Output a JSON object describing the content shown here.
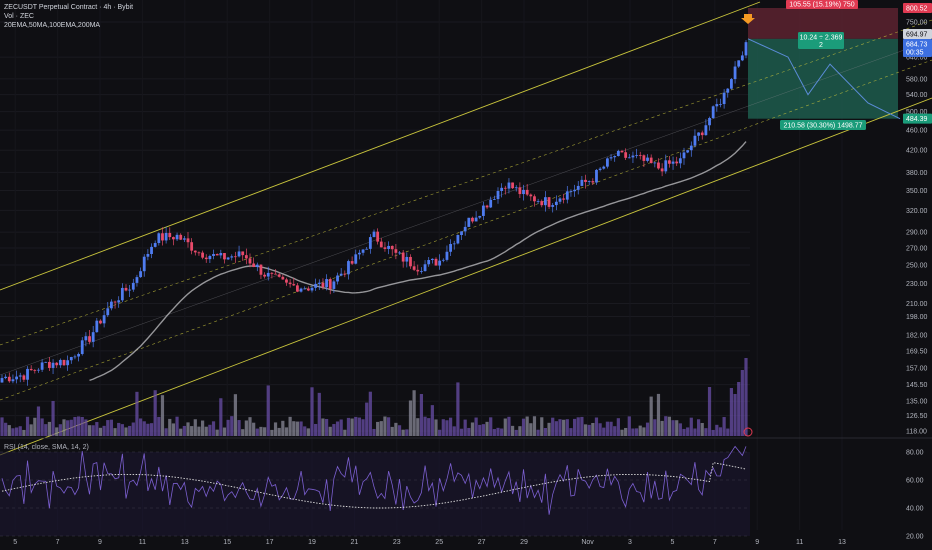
{
  "header": {
    "symbol_line": "ZECUSDT Perpetual Contract · 4h · Bybit",
    "vol_line": "Vol · ZEC",
    "ma_line": "20EMA,50MA,100EMA,200MA"
  },
  "rsi": {
    "title": "RSI (14, close, SMA, 14, 2)",
    "ticks": [
      "80.00",
      "60.00",
      "40.00",
      "20.00"
    ]
  },
  "colors": {
    "background": "#0f0f13",
    "bull": "#4f7cf0",
    "bear": "#e84a6a",
    "channel": "#c8c43c",
    "ma": "#b8b8bc",
    "volume": "#6a4fa8",
    "rsi_line": "#7b5fd0",
    "rsi_signal": "#e0e0e0",
    "target_zone": "#1d5c4e",
    "stop_zone": "#5c2230",
    "projection": "#5b8cd8"
  },
  "axis": {
    "price_ticks": [
      "750.00",
      "640.00",
      "580.00",
      "540.00",
      "500.00",
      "460.00",
      "420.00",
      "380.00",
      "350.00",
      "320.00",
      "290.00",
      "270.00",
      "250.00",
      "230.00",
      "210.00",
      "198.00",
      "182.00",
      "169.50",
      "157.00",
      "145.50",
      "135.00",
      "126.50",
      "118.00"
    ],
    "date_ticks": [
      "5",
      "7",
      "9",
      "11",
      "13",
      "15",
      "17",
      "19",
      "21",
      "23",
      "25",
      "27",
      "29",
      "Nov",
      "3",
      "5",
      "7",
      "9",
      "11",
      "13"
    ]
  },
  "price_labels": {
    "stop_level": "800.52",
    "current_price": "694.97",
    "last_price": "684.73",
    "countdown": "00:35",
    "target_level": "484.39"
  },
  "position": {
    "risk_label": "105.55 (15.19%) 750",
    "ratio_label": "10.24 ÷ 2.369",
    "ratio_sub": "2",
    "reward_label": "210.58 (30.30%) 1498.77"
  },
  "chart_data": {
    "type": "candlestick",
    "title": "ZECUSDT Perpetual Contract · 4h · Bybit",
    "y_scale": "log",
    "ylim": [
      118,
      800
    ],
    "x_range": [
      "Oct 4",
      "Nov 13"
    ],
    "candles_daily_close": [
      {
        "date": "Oct 4",
        "close": 150
      },
      {
        "date": "Oct 5",
        "close": 152
      },
      {
        "date": "Oct 6",
        "close": 160
      },
      {
        "date": "Oct 7",
        "close": 162
      },
      {
        "date": "Oct 8",
        "close": 180
      },
      {
        "date": "Oct 9",
        "close": 210
      },
      {
        "date": "Oct 10",
        "close": 230
      },
      {
        "date": "Oct 11",
        "close": 282
      },
      {
        "date": "Oct 12",
        "close": 285
      },
      {
        "date": "Oct 13",
        "close": 265
      },
      {
        "date": "Oct 14",
        "close": 258
      },
      {
        "date": "Oct 15",
        "close": 262
      },
      {
        "date": "Oct 16",
        "close": 240
      },
      {
        "date": "Oct 17",
        "close": 228
      },
      {
        "date": "Oct 18",
        "close": 226
      },
      {
        "date": "Oct 19",
        "close": 230
      },
      {
        "date": "Oct 20",
        "close": 252
      },
      {
        "date": "Oct 21",
        "close": 285
      },
      {
        "date": "Oct 22",
        "close": 262
      },
      {
        "date": "Oct 23",
        "close": 248
      },
      {
        "date": "Oct 24",
        "close": 255
      },
      {
        "date": "Oct 25",
        "close": 295
      },
      {
        "date": "Oct 26",
        "close": 325
      },
      {
        "date": "Oct 27",
        "close": 362
      },
      {
        "date": "Oct 28",
        "close": 340
      },
      {
        "date": "Oct 29",
        "close": 332
      },
      {
        "date": "Oct 30",
        "close": 350
      },
      {
        "date": "Oct 31",
        "close": 370
      },
      {
        "date": "Nov 1",
        "close": 410
      },
      {
        "date": "Nov 2",
        "close": 405
      },
      {
        "date": "Nov 3",
        "close": 388
      },
      {
        "date": "Nov 4",
        "close": 400
      },
      {
        "date": "Nov 5",
        "close": 460
      },
      {
        "date": "Nov 6",
        "close": 540
      },
      {
        "date": "Nov 7",
        "close": 684.73
      }
    ],
    "rsi_ylim": [
      20,
      80
    ]
  }
}
